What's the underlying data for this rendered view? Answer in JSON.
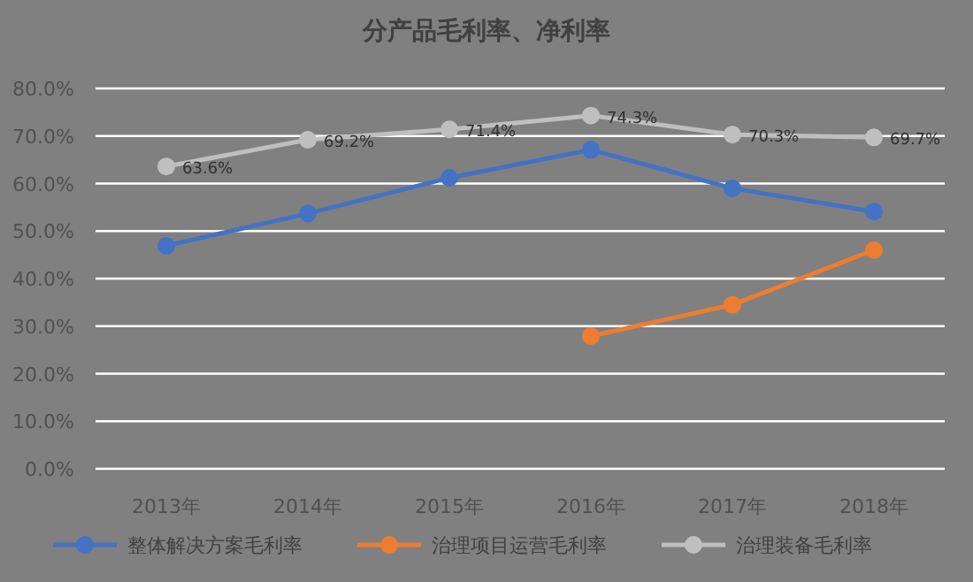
{
  "chart_data": {
    "type": "line",
    "title": "分产品毛利率、净利率",
    "categories": [
      "2013年",
      "2014年",
      "2015年",
      "2016年",
      "2017年",
      "2018年"
    ],
    "series": [
      {
        "name": "整体解决方案毛利率",
        "color": "#4472c4",
        "values": [
          46.9,
          53.7,
          61.2,
          67.1,
          59.0,
          54.1
        ]
      },
      {
        "name": "治理项目运营毛利率",
        "color": "#ed7d31",
        "values": [
          null,
          null,
          null,
          27.9,
          34.5,
          46.0
        ]
      },
      {
        "name": "治理装备毛利率",
        "color": "#bfbfbf",
        "values": [
          63.6,
          69.2,
          71.4,
          74.3,
          70.3,
          69.7
        ],
        "value_labels": [
          "63.6%",
          "69.2%",
          "71.4%",
          "74.3%",
          "70.3%",
          "69.7%"
        ]
      }
    ],
    "ylim": [
      0,
      80
    ],
    "yticks": [
      {
        "value": 0,
        "label": "0.0%"
      },
      {
        "value": 10,
        "label": "10.0%"
      },
      {
        "value": 20,
        "label": "20.0%"
      },
      {
        "value": 30,
        "label": "30.0%"
      },
      {
        "value": 40,
        "label": "40.0%"
      },
      {
        "value": 50,
        "label": "50.0%"
      },
      {
        "value": 60,
        "label": "60.0%"
      },
      {
        "value": 70,
        "label": "70.0%"
      },
      {
        "value": 80,
        "label": "80.0%"
      }
    ],
    "grid": "y",
    "legend": "bottom",
    "marker": "circle"
  }
}
